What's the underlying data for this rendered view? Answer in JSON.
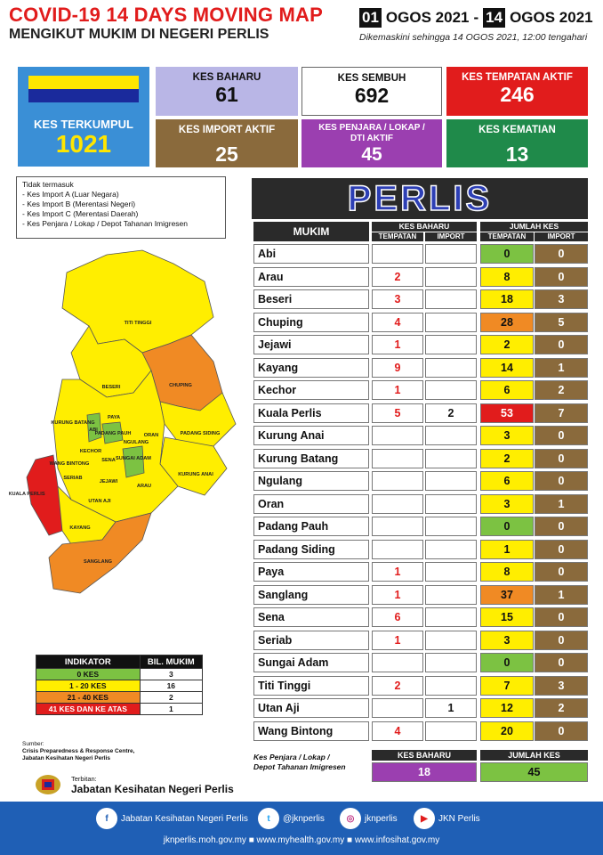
{
  "header": {
    "title": "COVID-19 14 DAYS MOVING MAP",
    "subtitle": "MENGIKUT MUKIM DI NEGERI PERLIS",
    "date_from_day": "01",
    "date_from_rest": "OGOS 2021",
    "date_sep": "-",
    "date_to_day": "14",
    "date_to_rest": "OGOS 2021",
    "updated": "Dikemaskini sehingga 14 OGOS 2021, 12:00 tengahari"
  },
  "stats": {
    "terkumpul_label": "KES TERKUMPUL",
    "terkumpul": "1021",
    "baharu_label": "KES BAHARU",
    "baharu": "61",
    "sembuh_label": "KES SEMBUH",
    "sembuh": "692",
    "tempatan_label": "KES TEMPATAN AKTIF",
    "tempatan": "246",
    "import_label": "KES IMPORT AKTIF",
    "import": "25",
    "penjara_label": "KES PENJARA / LOKAP / DTI AKTIF",
    "penjara": "45",
    "kematian_label": "KES KEMATIAN",
    "kematian": "13"
  },
  "notes": {
    "title": "Tidak termasuk",
    "items": [
      "- Kes Import A (Luar Negara)",
      "- Kes Import B (Merentasi Negeri)",
      "- Kes Import C (Merentasi Daerah)",
      "- Kes Penjara / Lokap / Depot Tahanan Imigresen"
    ]
  },
  "map_labels": [
    "TITI TINGGI",
    "BESERI",
    "CHUPING",
    "PAYA",
    "KURUNG BATANG",
    "ABI",
    "PADANG PAUH",
    "ORAN",
    "NGULANG",
    "PADANG SIDING",
    "WANG BINTONG",
    "KECHOR",
    "SENA",
    "SUNGAI ADAM",
    "KURUNG ANAI",
    "SERIAB",
    "JEJAWI",
    "ARAU",
    "UTAN AJI",
    "KUALA PERLIS",
    "KAYANG",
    "SANGLANG"
  ],
  "indicator": {
    "h1": "INDIKATOR",
    "h2": "BIL. MUKIM",
    "rows": [
      {
        "label": "0 KES",
        "count": "3",
        "color": "#7cc242"
      },
      {
        "label": "1 - 20 KES",
        "count": "16",
        "color": "#ffee00"
      },
      {
        "label": "21 - 40 KES",
        "count": "2",
        "color": "#f08a24"
      },
      {
        "label": "41 KES DAN KE ATAS",
        "count": "1",
        "color": "#e11c1c"
      }
    ]
  },
  "source": {
    "label": "Sumber:",
    "text1": "Crisis Preparedness & Response Centre,",
    "text2": "Jabatan Kesihatan Negeri Perlis"
  },
  "publisher": {
    "label": "Terbitan:",
    "name": "Jabatan Kesihatan Negeri Perlis"
  },
  "table": {
    "banner": "PERLIS",
    "mukim": "MUKIM",
    "kes_baharu": "KES BAHARU",
    "jumlah_kes": "JUMLAH KES",
    "tempatan": "TEMPATAN",
    "import": "IMPORT",
    "rows": [
      [
        "Abi",
        "",
        "",
        "0",
        "0"
      ],
      [
        "Arau",
        "2",
        "",
        "8",
        "0"
      ],
      [
        "Beseri",
        "3",
        "",
        "18",
        "3"
      ],
      [
        "Chuping",
        "4",
        "",
        "28",
        "5"
      ],
      [
        "Jejawi",
        "1",
        "",
        "2",
        "0"
      ],
      [
        "Kayang",
        "9",
        "",
        "14",
        "1"
      ],
      [
        "Kechor",
        "1",
        "",
        "6",
        "2"
      ],
      [
        "Kuala Perlis",
        "5",
        "2",
        "53",
        "7"
      ],
      [
        "Kurung Anai",
        "",
        "",
        "3",
        "0"
      ],
      [
        "Kurung Batang",
        "",
        "",
        "2",
        "0"
      ],
      [
        "Ngulang",
        "",
        "",
        "6",
        "0"
      ],
      [
        "Oran",
        "",
        "",
        "3",
        "1"
      ],
      [
        "Padang Pauh",
        "",
        "",
        "0",
        "0"
      ],
      [
        "Padang Siding",
        "",
        "",
        "1",
        "0"
      ],
      [
        "Paya",
        "1",
        "",
        "8",
        "0"
      ],
      [
        "Sanglang",
        "1",
        "",
        "37",
        "1"
      ],
      [
        "Sena",
        "6",
        "",
        "15",
        "0"
      ],
      [
        "Seriab",
        "1",
        "",
        "3",
        "0"
      ],
      [
        "Sungai Adam",
        "",
        "",
        "0",
        "0"
      ],
      [
        "Titi Tinggi",
        "2",
        "",
        "7",
        "3"
      ],
      [
        "Utan Aji",
        "",
        "1",
        "12",
        "2"
      ],
      [
        "Wang Bintong",
        "4",
        "",
        "20",
        "0"
      ]
    ],
    "penjara_label1": "Kes Penjara / Lokap /",
    "penjara_label2": "Depot Tahanan Imigresen",
    "penjara_kb_label": "KES BAHARU",
    "penjara_kb": "18",
    "penjara_jk_label": "JUMLAH KES",
    "penjara_jk": "45"
  },
  "footer": {
    "fb": "Jabatan Kesihatan Negeri Perlis",
    "tw": "@jknperlis",
    "ig": "jknperlis",
    "yt": "JKN Perlis",
    "urls": "jknperlis.moh.gov.my  ■ www.myhealth.gov.my  ■ www.infosihat.gov.my"
  }
}
